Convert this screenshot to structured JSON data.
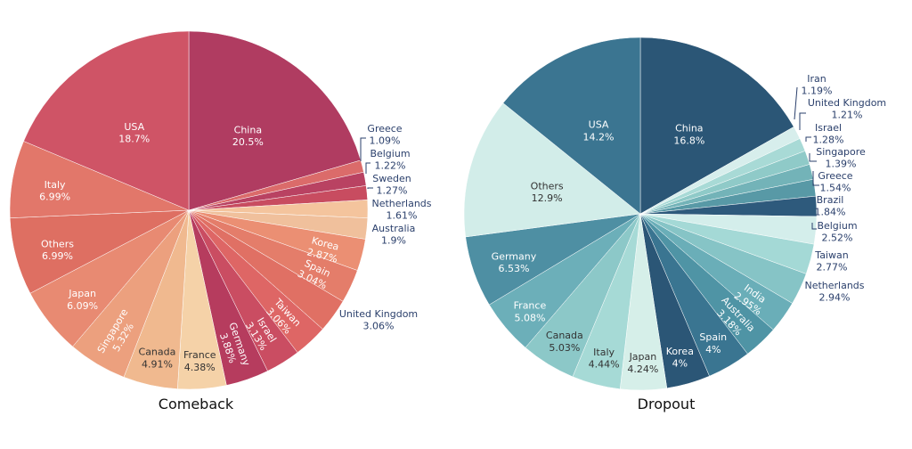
{
  "chart_data": [
    {
      "type": "pie",
      "title": "Comeback",
      "slices": [
        {
          "label": "China",
          "value": 20.5,
          "text": "20.5%",
          "color": "#b03c61"
        },
        {
          "label": "Greece",
          "value": 1.09,
          "text": "1.09%",
          "color": "#db6b6a"
        },
        {
          "label": "Belgium",
          "value": 1.22,
          "text": "1.22%",
          "color": "#b94262"
        },
        {
          "label": "Sweden",
          "value": 1.27,
          "text": "1.27%",
          "color": "#c84c60"
        },
        {
          "label": "Netherlands",
          "value": 1.61,
          "text": "1.61%",
          "color": "#f4c49d"
        },
        {
          "label": "Australia",
          "value": 1.9,
          "text": "1.9%",
          "color": "#f0c09c"
        },
        {
          "label": "Korea",
          "value": 2.87,
          "text": "2.87%",
          "color": "#eb8f73"
        },
        {
          "label": "Spain",
          "value": 3.04,
          "text": "3.04%",
          "color": "#e47d6a"
        },
        {
          "label": "United Kingdom",
          "value": 3.06,
          "text": "3.06%",
          "color": "#e07064"
        },
        {
          "label": "Taiwan",
          "value": 3.06,
          "text": "3.06%",
          "color": "#de6665"
        },
        {
          "label": "Israel",
          "value": 3.13,
          "text": "3.13%",
          "color": "#ca4d62"
        },
        {
          "label": "Germany",
          "value": 3.88,
          "text": "3.88%",
          "color": "#b63c5e"
        },
        {
          "label": "France",
          "value": 4.38,
          "text": "4.38%",
          "color": "#f5d2a8"
        },
        {
          "label": "Canada",
          "value": 4.91,
          "text": "4.91%",
          "color": "#f0b98f"
        },
        {
          "label": "Singapore",
          "value": 5.32,
          "text": "5.32%",
          "color": "#eca07e"
        },
        {
          "label": "Japan",
          "value": 6.09,
          "text": "6.09%",
          "color": "#e88a72"
        },
        {
          "label": "Others",
          "value": 6.99,
          "text": "6.99%",
          "color": "#de6f62"
        },
        {
          "label": "Italy",
          "value": 6.99,
          "text": "6.99%",
          "color": "#e2776a"
        },
        {
          "label": "USA",
          "value": 18.7,
          "text": "18.7%",
          "color": "#cf5466"
        }
      ]
    },
    {
      "type": "pie",
      "title": "Dropout",
      "slices": [
        {
          "label": "China",
          "value": 16.8,
          "text": "16.8%",
          "color": "#2b5676"
        },
        {
          "label": "Iran",
          "value": 1.19,
          "text": "1.19%",
          "color": "#d7eeec"
        },
        {
          "label": "United Kingdom",
          "value": 1.21,
          "text": "1.21%",
          "color": "#a8dad6"
        },
        {
          "label": "Israel",
          "value": 1.28,
          "text": "1.28%",
          "color": "#8fcac8"
        },
        {
          "label": "Singapore",
          "value": 1.39,
          "text": "1.39%",
          "color": "#73b3b8"
        },
        {
          "label": "Greece",
          "value": 1.54,
          "text": "1.54%",
          "color": "#5899a6"
        },
        {
          "label": "Brazil",
          "value": 1.84,
          "text": "1.84%",
          "color": "#2e5a7c"
        },
        {
          "label": "Belgium",
          "value": 2.52,
          "text": "2.52%",
          "color": "#d4eeeb"
        },
        {
          "label": "Taiwan",
          "value": 2.77,
          "text": "2.77%",
          "color": "#a4d9d6"
        },
        {
          "label": "Netherlands",
          "value": 2.94,
          "text": "2.94%",
          "color": "#86c4c6"
        },
        {
          "label": "India",
          "value": 2.95,
          "text": "2.95%",
          "color": "#6aaeb8"
        },
        {
          "label": "Australia",
          "value": 3.18,
          "text": "3.18%",
          "color": "#4f94a5"
        },
        {
          "label": "Spain",
          "value": 4,
          "text": "4%",
          "color": "#3a7591"
        },
        {
          "label": "Korea",
          "value": 4,
          "text": "4%",
          "color": "#2b5676"
        },
        {
          "label": "Japan",
          "value": 4.24,
          "text": "4.24%",
          "color": "#d6efe9"
        },
        {
          "label": "Italy",
          "value": 4.44,
          "text": "4.44%",
          "color": "#a6dad6"
        },
        {
          "label": "Canada",
          "value": 5.03,
          "text": "5.03%",
          "color": "#8cc8c8"
        },
        {
          "label": "France",
          "value": 5.08,
          "text": "5.08%",
          "color": "#6cafb9"
        },
        {
          "label": "Germany",
          "value": 6.53,
          "text": "6.53%",
          "color": "#4e8fa3"
        },
        {
          "label": "Others",
          "value": 12.9,
          "text": "12.9%",
          "color": "#d2ede9"
        },
        {
          "label": "USA",
          "value": 14.2,
          "text": "14.2%",
          "color": "#3b7591"
        }
      ]
    }
  ]
}
